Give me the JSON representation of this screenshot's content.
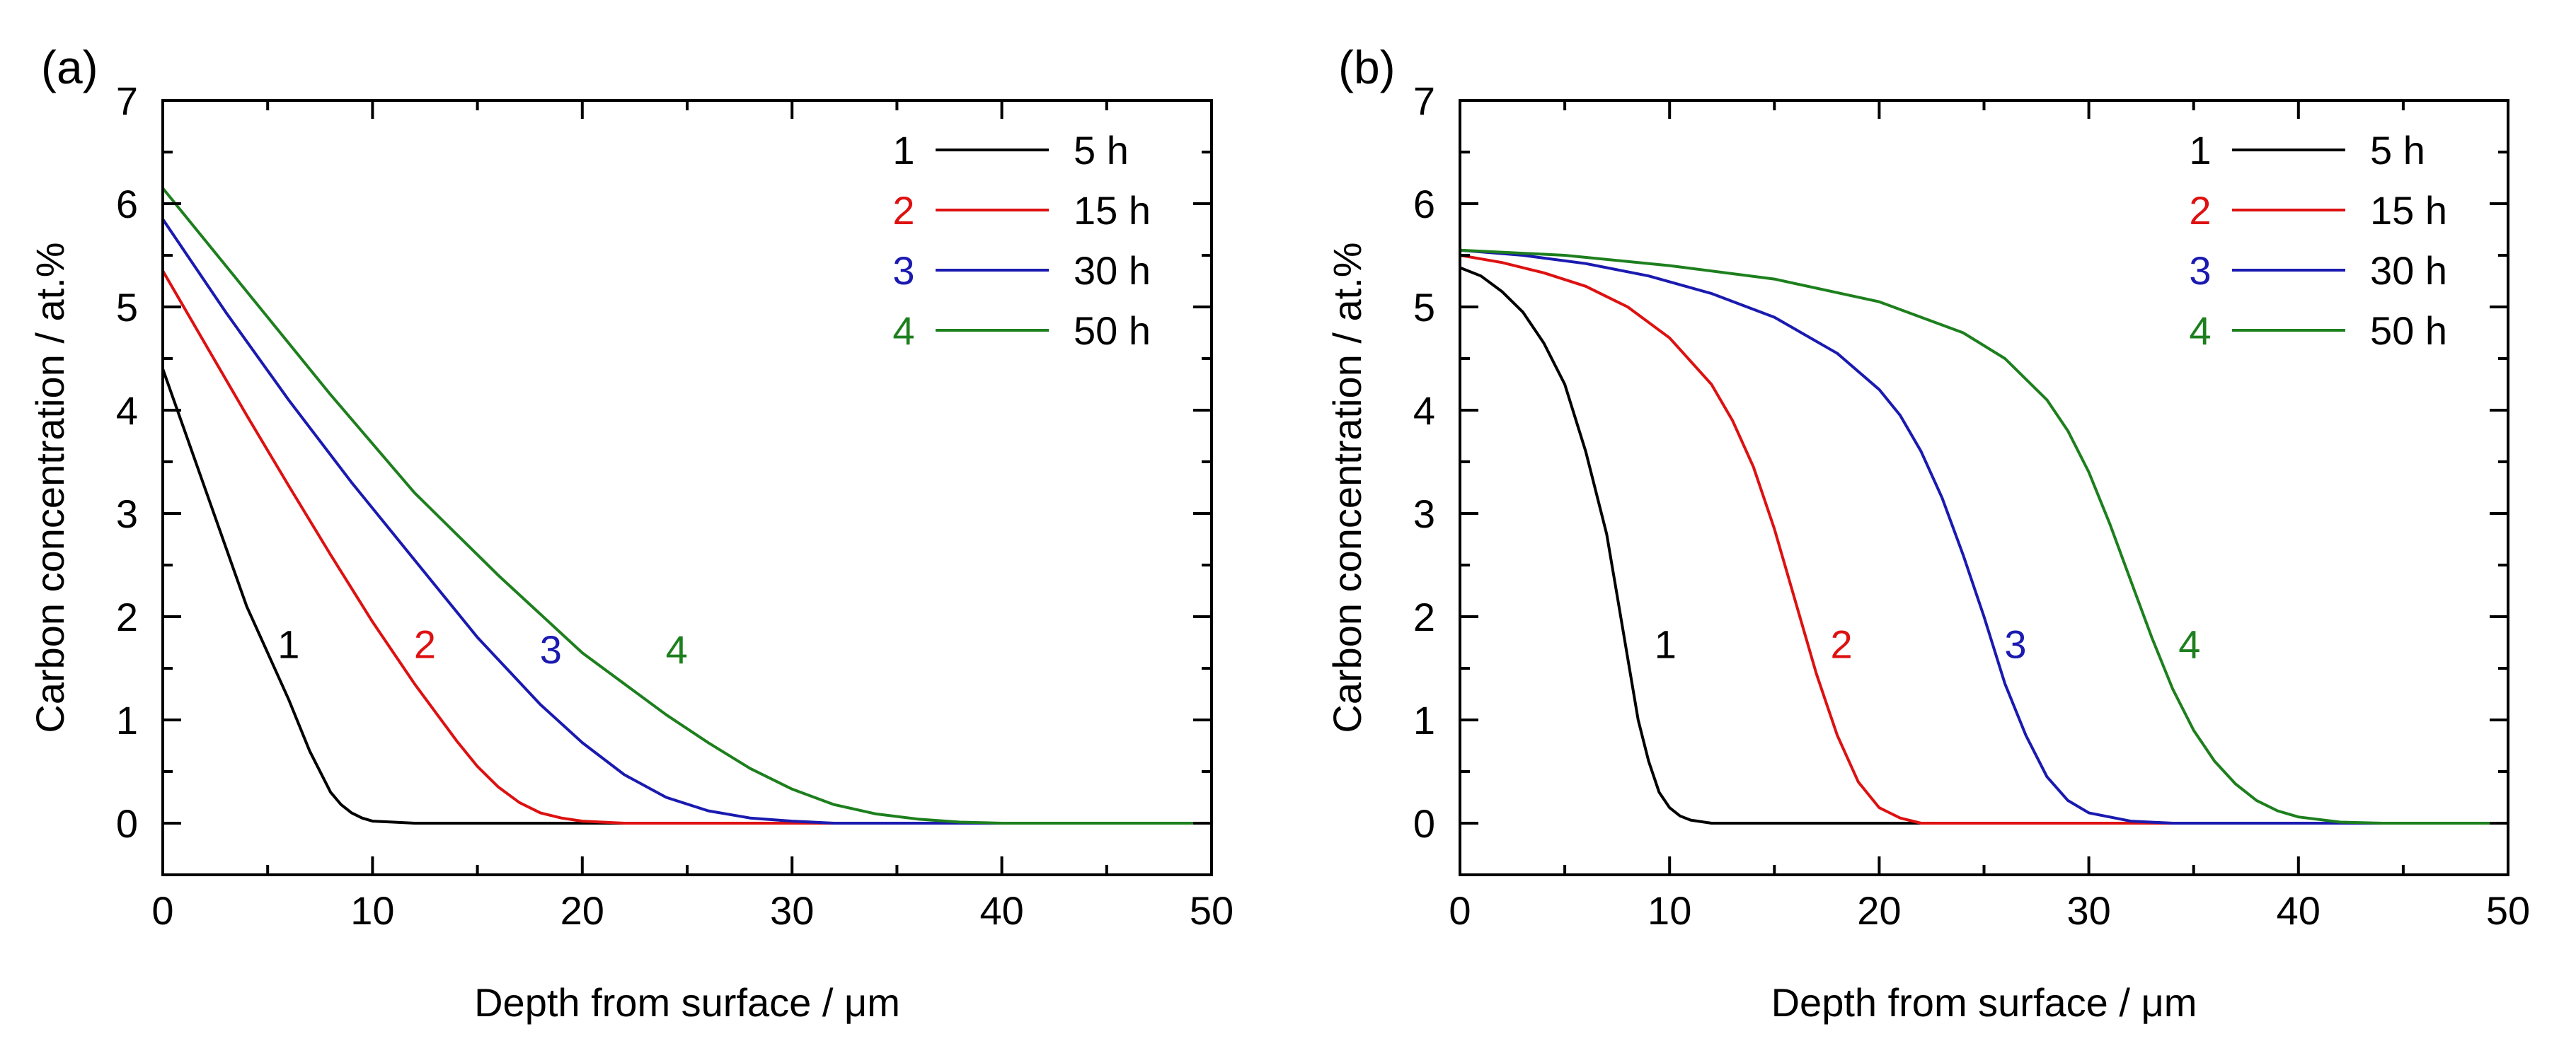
{
  "chart_data": [
    {
      "panel_label": "(a)",
      "type": "line",
      "xlabel": "Depth from surface / μm",
      "ylabel": "Carbon concentration / at.%",
      "xlim": [
        0,
        50
      ],
      "ylim": [
        -0.5,
        7
      ],
      "x_ticks": [
        0,
        10,
        20,
        30,
        40,
        50
      ],
      "y_ticks": [
        0,
        1,
        2,
        3,
        4,
        5,
        6,
        7
      ],
      "legend_position": "top-right",
      "series": [
        {
          "id": "1",
          "name": "5 h",
          "color": "#000000",
          "curve_label": "1",
          "label_at": [
            6,
            1.7
          ],
          "x": [
            0,
            2,
            4,
            6,
            7,
            8,
            8.5,
            9,
            9.5,
            10,
            11,
            12,
            14,
            50
          ],
          "y": [
            4.4,
            3.25,
            2.1,
            1.2,
            0.7,
            0.3,
            0.18,
            0.1,
            0.05,
            0.02,
            0.01,
            0.0,
            0.0,
            0.0
          ]
        },
        {
          "id": "2",
          "name": "15 h",
          "color": "#dd1111",
          "curve_label": "2",
          "label_at": [
            12.5,
            1.7
          ],
          "x": [
            0,
            2,
            4,
            6,
            8,
            10,
            12,
            14,
            15,
            16,
            17,
            18,
            19,
            20,
            22,
            24,
            50
          ],
          "y": [
            5.35,
            4.65,
            3.95,
            3.27,
            2.6,
            1.95,
            1.35,
            0.8,
            0.55,
            0.35,
            0.2,
            0.1,
            0.05,
            0.02,
            0.0,
            0.0,
            0.0
          ]
        },
        {
          "id": "3",
          "name": "30 h",
          "color": "#1a1ab0",
          "curve_label": "3",
          "label_at": [
            18.5,
            1.65
          ],
          "x": [
            0,
            3,
            6,
            9,
            12,
            15,
            18,
            20,
            22,
            24,
            26,
            28,
            30,
            32,
            34,
            50
          ],
          "y": [
            5.85,
            4.95,
            4.1,
            3.3,
            2.55,
            1.8,
            1.15,
            0.78,
            0.47,
            0.25,
            0.12,
            0.05,
            0.02,
            0.0,
            0.0,
            0.0
          ]
        },
        {
          "id": "4",
          "name": "50 h",
          "color": "#1d7f1d",
          "curve_label": "4",
          "label_at": [
            24.5,
            1.65
          ],
          "x": [
            0,
            4,
            8,
            12,
            16,
            20,
            24,
            26,
            28,
            30,
            32,
            34,
            36,
            38,
            40,
            42,
            50
          ],
          "y": [
            6.15,
            5.15,
            4.15,
            3.2,
            2.4,
            1.65,
            1.05,
            0.78,
            0.53,
            0.33,
            0.18,
            0.09,
            0.04,
            0.01,
            0.0,
            0.0,
            0.0
          ]
        }
      ]
    },
    {
      "panel_label": "(b)",
      "type": "line",
      "xlabel": "Depth from surface / μm",
      "ylabel": "Carbon concentration / at.%",
      "xlim": [
        0,
        50
      ],
      "ylim": [
        -0.5,
        7
      ],
      "x_ticks": [
        0,
        10,
        20,
        30,
        40,
        50
      ],
      "y_ticks": [
        0,
        1,
        2,
        3,
        4,
        5,
        6,
        7
      ],
      "legend_position": "top-right",
      "series": [
        {
          "id": "1",
          "name": "5 h",
          "color": "#000000",
          "curve_label": "1",
          "label_at": [
            9.8,
            1.7
          ],
          "x": [
            0,
            1,
            2,
            3,
            4,
            5,
            6,
            6.5,
            7,
            7.5,
            8,
            8.5,
            9,
            9.5,
            10,
            10.5,
            11,
            12,
            13,
            50
          ],
          "y": [
            5.38,
            5.3,
            5.15,
            4.95,
            4.65,
            4.25,
            3.6,
            3.2,
            2.8,
            2.2,
            1.6,
            1.0,
            0.6,
            0.3,
            0.15,
            0.07,
            0.03,
            0.0,
            0.0,
            0.0
          ]
        },
        {
          "id": "2",
          "name": "15 h",
          "color": "#dd1111",
          "curve_label": "2",
          "label_at": [
            18.2,
            1.7
          ],
          "x": [
            0,
            2,
            4,
            6,
            8,
            10,
            12,
            13,
            14,
            15,
            16,
            16.5,
            17,
            17.5,
            18,
            19,
            20,
            21,
            22,
            50
          ],
          "y": [
            5.5,
            5.43,
            5.33,
            5.2,
            5.0,
            4.7,
            4.25,
            3.9,
            3.45,
            2.85,
            2.15,
            1.8,
            1.45,
            1.15,
            0.85,
            0.4,
            0.15,
            0.05,
            0.0,
            0.0
          ]
        },
        {
          "id": "3",
          "name": "30 h",
          "color": "#1a1ab0",
          "curve_label": "3",
          "label_at": [
            26.5,
            1.7
          ],
          "x": [
            0,
            3,
            6,
            9,
            12,
            15,
            18,
            20,
            21,
            22,
            23,
            24,
            25,
            26,
            27,
            28,
            29,
            30,
            32,
            34,
            50
          ],
          "y": [
            5.55,
            5.5,
            5.42,
            5.3,
            5.13,
            4.9,
            4.55,
            4.2,
            3.95,
            3.6,
            3.15,
            2.6,
            2.0,
            1.35,
            0.85,
            0.45,
            0.22,
            0.1,
            0.02,
            0.0,
            0.0
          ]
        },
        {
          "id": "4",
          "name": "50 h",
          "color": "#1d7f1d",
          "curve_label": "4",
          "label_at": [
            34.8,
            1.7
          ],
          "x": [
            0,
            5,
            10,
            15,
            20,
            24,
            26,
            28,
            29,
            30,
            31,
            32,
            33,
            34,
            35,
            36,
            37,
            38,
            39,
            40,
            42,
            44,
            50
          ],
          "y": [
            5.55,
            5.5,
            5.4,
            5.27,
            5.05,
            4.75,
            4.5,
            4.1,
            3.8,
            3.4,
            2.9,
            2.35,
            1.8,
            1.3,
            0.9,
            0.6,
            0.38,
            0.22,
            0.12,
            0.06,
            0.01,
            0.0,
            0.0
          ]
        }
      ]
    }
  ]
}
